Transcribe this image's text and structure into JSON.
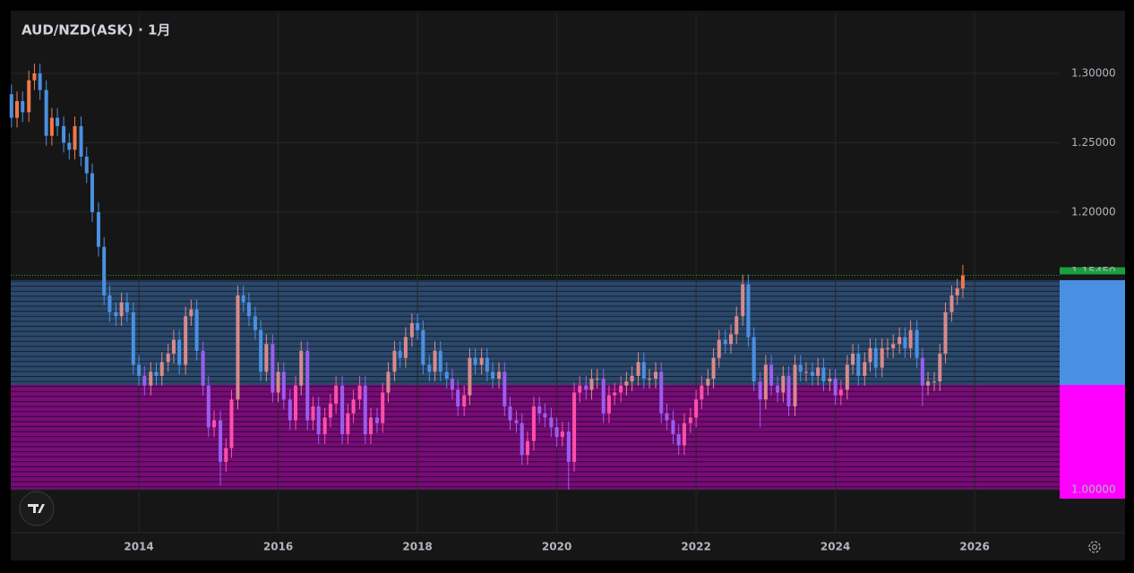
{
  "chart_data": {
    "type": "candlestick",
    "title": "AUD/NZD(ASK) · 1月",
    "xlim": [
      2012.16,
      2027.22
    ],
    "ylim": [
      0.969,
      1.3432
    ],
    "xticks": [
      2014,
      2016,
      2018,
      2020,
      2022,
      2024,
      2026
    ],
    "yticks": [
      {
        "value": 1.3,
        "label": "1.30000"
      },
      {
        "value": 1.25,
        "label": "1.25000"
      },
      {
        "value": 1.2,
        "label": "1.20000"
      },
      {
        "value": 1.0,
        "label": "1.00000"
      }
    ],
    "grid": true,
    "last_price": {
      "value": 1.1545,
      "label": "1.15450",
      "color": "#1b9e3e"
    },
    "zones": [
      {
        "from": 1.0755,
        "to": 1.151,
        "color": "#4a90e2",
        "up_color": "#d98a8a",
        "down_color": "#4a90e2"
      },
      {
        "from": 1.0,
        "to": 1.0755,
        "color": "#ff00ff",
        "up_color": "#ff4fa8",
        "down_color": "#9b5cf0"
      }
    ],
    "series": {
      "up_color": "#f0784a",
      "down_color": "#4a90e2",
      "x": [
        2012.17,
        2012.25,
        2012.33,
        2012.42,
        2012.5,
        2012.58,
        2012.67,
        2012.75,
        2012.83,
        2012.92,
        2013.0,
        2013.08,
        2013.17,
        2013.25,
        2013.33,
        2013.42,
        2013.5,
        2013.58,
        2013.67,
        2013.75,
        2013.83,
        2013.92,
        2014.0,
        2014.08,
        2014.17,
        2014.25,
        2014.33,
        2014.42,
        2014.5,
        2014.58,
        2014.67,
        2014.75,
        2014.83,
        2014.92,
        2015.0,
        2015.08,
        2015.17,
        2015.25,
        2015.33,
        2015.42,
        2015.5,
        2015.58,
        2015.67,
        2015.75,
        2015.83,
        2015.92,
        2016.0,
        2016.08,
        2016.17,
        2016.25,
        2016.33,
        2016.42,
        2016.5,
        2016.58,
        2016.67,
        2016.75,
        2016.83,
        2016.92,
        2017.0,
        2017.08,
        2017.17,
        2017.25,
        2017.33,
        2017.42,
        2017.5,
        2017.58,
        2017.67,
        2017.75,
        2017.83,
        2017.92,
        2018.0,
        2018.08,
        2018.17,
        2018.25,
        2018.33,
        2018.42,
        2018.5,
        2018.58,
        2018.67,
        2018.75,
        2018.83,
        2018.92,
        2019.0,
        2019.08,
        2019.17,
        2019.25,
        2019.33,
        2019.42,
        2019.5,
        2019.58,
        2019.67,
        2019.75,
        2019.83,
        2019.92,
        2020.0,
        2020.08,
        2020.17,
        2020.25,
        2020.33,
        2020.42,
        2020.5,
        2020.58,
        2020.67,
        2020.75,
        2020.83,
        2020.92,
        2021.0,
        2021.08,
        2021.17,
        2021.25,
        2021.33,
        2021.42,
        2021.5,
        2021.58,
        2021.67,
        2021.75,
        2021.83,
        2021.92,
        2022.0,
        2022.08,
        2022.17,
        2022.25,
        2022.33,
        2022.42,
        2022.5,
        2022.58,
        2022.67,
        2022.75,
        2022.83,
        2022.92,
        2023.0,
        2023.08,
        2023.17,
        2023.25,
        2023.33,
        2023.42,
        2023.5,
        2023.58,
        2023.67,
        2023.75,
        2023.83,
        2023.92,
        2024.0,
        2024.08,
        2024.17,
        2024.25,
        2024.33,
        2024.42,
        2024.5,
        2024.58,
        2024.67,
        2024.75,
        2024.83,
        2024.92,
        2025.0,
        2025.08,
        2025.17,
        2025.25,
        2025.33,
        2025.42,
        2025.5,
        2025.58,
        2025.67,
        2025.75,
        2025.83
      ],
      "open": [
        1.285,
        1.268,
        1.28,
        1.272,
        1.295,
        1.3,
        1.288,
        1.255,
        1.268,
        1.262,
        1.25,
        1.245,
        1.262,
        1.24,
        1.228,
        1.2,
        1.175,
        1.14,
        1.128,
        1.125,
        1.135,
        1.128,
        1.09,
        1.082,
        1.075,
        1.085,
        1.082,
        1.092,
        1.098,
        1.108,
        1.09,
        1.125,
        1.13,
        1.1,
        1.075,
        1.045,
        1.05,
        1.02,
        1.03,
        1.065,
        1.14,
        1.135,
        1.125,
        1.115,
        1.085,
        1.105,
        1.07,
        1.085,
        1.065,
        1.05,
        1.075,
        1.1,
        1.05,
        1.06,
        1.04,
        1.052,
        1.062,
        1.075,
        1.04,
        1.055,
        1.065,
        1.075,
        1.04,
        1.052,
        1.048,
        1.07,
        1.085,
        1.1,
        1.095,
        1.11,
        1.12,
        1.115,
        1.09,
        1.085,
        1.1,
        1.085,
        1.08,
        1.072,
        1.06,
        1.068,
        1.095,
        1.09,
        1.095,
        1.085,
        1.08,
        1.085,
        1.06,
        1.05,
        1.048,
        1.025,
        1.035,
        1.06,
        1.055,
        1.052,
        1.045,
        1.038,
        1.042,
        1.02,
        1.07,
        1.075,
        1.072,
        1.08,
        1.08,
        1.055,
        1.068,
        1.07,
        1.075,
        1.078,
        1.082,
        1.092,
        1.08,
        1.08,
        1.085,
        1.055,
        1.05,
        1.04,
        1.032,
        1.048,
        1.052,
        1.065,
        1.075,
        1.08,
        1.095,
        1.108,
        1.105,
        1.112,
        1.125,
        1.148,
        1.11,
        1.078,
        1.065,
        1.09,
        1.075,
        1.07,
        1.082,
        1.06,
        1.09,
        1.085,
        1.085,
        1.082,
        1.088,
        1.078,
        1.08,
        1.068,
        1.072,
        1.09,
        1.098,
        1.082,
        1.092,
        1.102,
        1.088,
        1.102,
        1.102,
        1.105,
        1.11,
        1.102,
        1.115,
        1.095,
        1.075,
        1.078,
        1.078,
        1.098,
        1.128,
        1.14,
        1.145
      ],
      "high": [
        1.292,
        1.287,
        1.287,
        1.302,
        1.307,
        1.307,
        1.295,
        1.275,
        1.275,
        1.269,
        1.257,
        1.269,
        1.269,
        1.247,
        1.235,
        1.207,
        1.182,
        1.147,
        1.135,
        1.142,
        1.142,
        1.135,
        1.097,
        1.089,
        1.092,
        1.092,
        1.099,
        1.105,
        1.115,
        1.115,
        1.132,
        1.137,
        1.137,
        1.107,
        1.082,
        1.057,
        1.057,
        1.037,
        1.072,
        1.147,
        1.147,
        1.142,
        1.132,
        1.122,
        1.112,
        1.112,
        1.092,
        1.092,
        1.072,
        1.082,
        1.107,
        1.107,
        1.067,
        1.067,
        1.059,
        1.069,
        1.082,
        1.082,
        1.062,
        1.072,
        1.082,
        1.082,
        1.059,
        1.059,
        1.077,
        1.092,
        1.107,
        1.107,
        1.117,
        1.127,
        1.127,
        1.122,
        1.097,
        1.107,
        1.107,
        1.092,
        1.087,
        1.079,
        1.075,
        1.102,
        1.102,
        1.102,
        1.102,
        1.092,
        1.092,
        1.092,
        1.067,
        1.057,
        1.055,
        1.042,
        1.067,
        1.067,
        1.062,
        1.059,
        1.052,
        1.049,
        1.049,
        1.077,
        1.082,
        1.082,
        1.087,
        1.087,
        1.087,
        1.075,
        1.077,
        1.082,
        1.085,
        1.089,
        1.099,
        1.099,
        1.087,
        1.092,
        1.092,
        1.062,
        1.057,
        1.047,
        1.055,
        1.059,
        1.072,
        1.082,
        1.087,
        1.102,
        1.115,
        1.115,
        1.119,
        1.132,
        1.155,
        1.155,
        1.117,
        1.085,
        1.097,
        1.097,
        1.082,
        1.089,
        1.089,
        1.097,
        1.097,
        1.092,
        1.092,
        1.095,
        1.095,
        1.087,
        1.087,
        1.079,
        1.097,
        1.105,
        1.105,
        1.099,
        1.109,
        1.109,
        1.109,
        1.109,
        1.112,
        1.117,
        1.117,
        1.122,
        1.122,
        1.102,
        1.085,
        1.085,
        1.105,
        1.135,
        1.147,
        1.152,
        1.162
      ],
      "low": [
        1.261,
        1.261,
        1.265,
        1.265,
        1.288,
        1.281,
        1.248,
        1.248,
        1.255,
        1.243,
        1.238,
        1.238,
        1.233,
        1.221,
        1.193,
        1.168,
        1.133,
        1.121,
        1.118,
        1.118,
        1.121,
        1.083,
        1.075,
        1.068,
        1.068,
        1.075,
        1.075,
        1.085,
        1.091,
        1.083,
        1.083,
        1.118,
        1.093,
        1.068,
        1.038,
        1.038,
        1.003,
        1.013,
        1.023,
        1.058,
        1.128,
        1.118,
        1.108,
        1.078,
        1.078,
        1.063,
        1.063,
        1.058,
        1.043,
        1.043,
        1.068,
        1.043,
        1.043,
        1.033,
        1.033,
        1.045,
        1.055,
        1.033,
        1.033,
        1.048,
        1.058,
        1.033,
        1.033,
        1.041,
        1.041,
        1.063,
        1.078,
        1.088,
        1.088,
        1.103,
        1.108,
        1.083,
        1.078,
        1.078,
        1.078,
        1.073,
        1.065,
        1.053,
        1.053,
        1.061,
        1.083,
        1.083,
        1.078,
        1.073,
        1.073,
        1.053,
        1.043,
        1.041,
        1.018,
        1.018,
        1.028,
        1.048,
        1.045,
        1.038,
        1.031,
        1.031,
        1.0,
        1.013,
        1.063,
        1.065,
        1.065,
        1.073,
        1.048,
        1.048,
        1.061,
        1.063,
        1.068,
        1.071,
        1.075,
        1.073,
        1.073,
        1.073,
        1.048,
        1.043,
        1.033,
        1.025,
        1.025,
        1.041,
        1.045,
        1.058,
        1.068,
        1.073,
        1.088,
        1.098,
        1.098,
        1.105,
        1.118,
        1.103,
        1.071,
        1.045,
        1.058,
        1.068,
        1.063,
        1.063,
        1.053,
        1.053,
        1.078,
        1.078,
        1.075,
        1.075,
        1.071,
        1.071,
        1.061,
        1.061,
        1.065,
        1.083,
        1.075,
        1.075,
        1.085,
        1.081,
        1.081,
        1.095,
        1.095,
        1.098,
        1.095,
        1.095,
        1.088,
        1.06,
        1.068,
        1.071,
        1.071,
        1.091,
        1.121,
        1.133,
        1.138
      ],
      "close": [
        1.268,
        1.28,
        1.272,
        1.295,
        1.3,
        1.288,
        1.255,
        1.268,
        1.262,
        1.25,
        1.245,
        1.262,
        1.24,
        1.228,
        1.2,
        1.175,
        1.14,
        1.128,
        1.125,
        1.135,
        1.128,
        1.09,
        1.082,
        1.075,
        1.085,
        1.082,
        1.092,
        1.098,
        1.108,
        1.09,
        1.125,
        1.13,
        1.1,
        1.075,
        1.045,
        1.05,
        1.02,
        1.03,
        1.065,
        1.14,
        1.135,
        1.125,
        1.115,
        1.085,
        1.105,
        1.07,
        1.085,
        1.065,
        1.05,
        1.075,
        1.1,
        1.05,
        1.06,
        1.04,
        1.052,
        1.062,
        1.075,
        1.04,
        1.055,
        1.065,
        1.075,
        1.04,
        1.052,
        1.048,
        1.07,
        1.085,
        1.1,
        1.095,
        1.11,
        1.12,
        1.115,
        1.09,
        1.085,
        1.1,
        1.085,
        1.08,
        1.072,
        1.06,
        1.068,
        1.095,
        1.09,
        1.095,
        1.085,
        1.08,
        1.085,
        1.06,
        1.05,
        1.048,
        1.025,
        1.035,
        1.06,
        1.055,
        1.052,
        1.045,
        1.038,
        1.042,
        1.02,
        1.07,
        1.075,
        1.072,
        1.08,
        1.08,
        1.055,
        1.068,
        1.07,
        1.075,
        1.078,
        1.082,
        1.092,
        1.08,
        1.08,
        1.085,
        1.055,
        1.05,
        1.04,
        1.032,
        1.048,
        1.052,
        1.065,
        1.075,
        1.08,
        1.095,
        1.108,
        1.105,
        1.112,
        1.125,
        1.148,
        1.11,
        1.078,
        1.065,
        1.09,
        1.075,
        1.07,
        1.082,
        1.06,
        1.09,
        1.085,
        1.085,
        1.082,
        1.088,
        1.078,
        1.08,
        1.068,
        1.072,
        1.09,
        1.098,
        1.082,
        1.092,
        1.102,
        1.088,
        1.102,
        1.102,
        1.105,
        1.11,
        1.102,
        1.115,
        1.095,
        1.075,
        1.078,
        1.078,
        1.098,
        1.128,
        1.14,
        1.145,
        1.1545
      ]
    }
  }
}
